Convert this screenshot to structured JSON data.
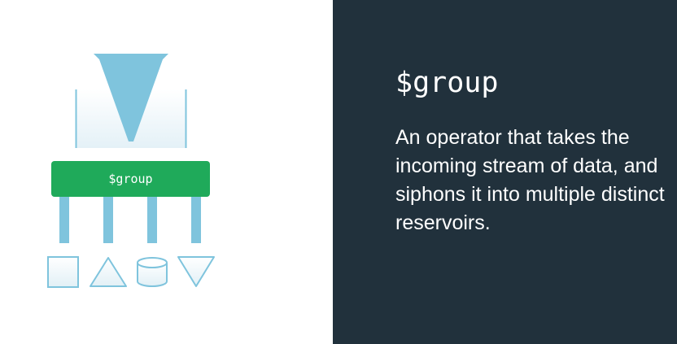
{
  "diagram": {
    "box_label": "$group",
    "operator_color": "#1faa5a",
    "shape_color": "#7fc4dd",
    "output_shapes": [
      "square-icon",
      "triangle-icon",
      "cylinder-icon",
      "inverted-triangle-icon"
    ]
  },
  "text_panel": {
    "title": "$group",
    "description": "An operator that takes the incoming stream of data, and siphons it into multiple distinct reservoirs.",
    "background_color": "#21313c"
  }
}
